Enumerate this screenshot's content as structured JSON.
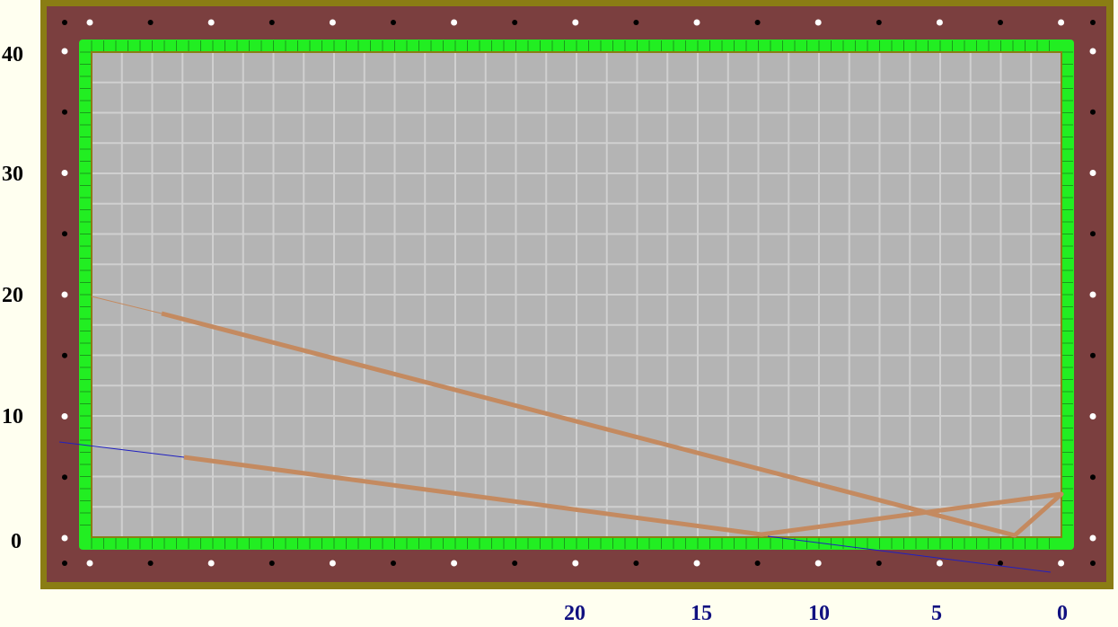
{
  "table": {
    "colors": {
      "frame": "#8a7d14",
      "rail": "#7b3f3f",
      "cushion": "#22ee22",
      "felt": "#b4b4b4",
      "grid": "#d0d0d0",
      "shot_path": "#c48a60",
      "aim_line": "#2020c0"
    }
  },
  "y_axis": {
    "labels": [
      "40",
      "30",
      "20",
      "10",
      "0"
    ]
  },
  "x_axis": {
    "labels": [
      "20",
      "15",
      "10",
      "5",
      "0"
    ]
  }
}
